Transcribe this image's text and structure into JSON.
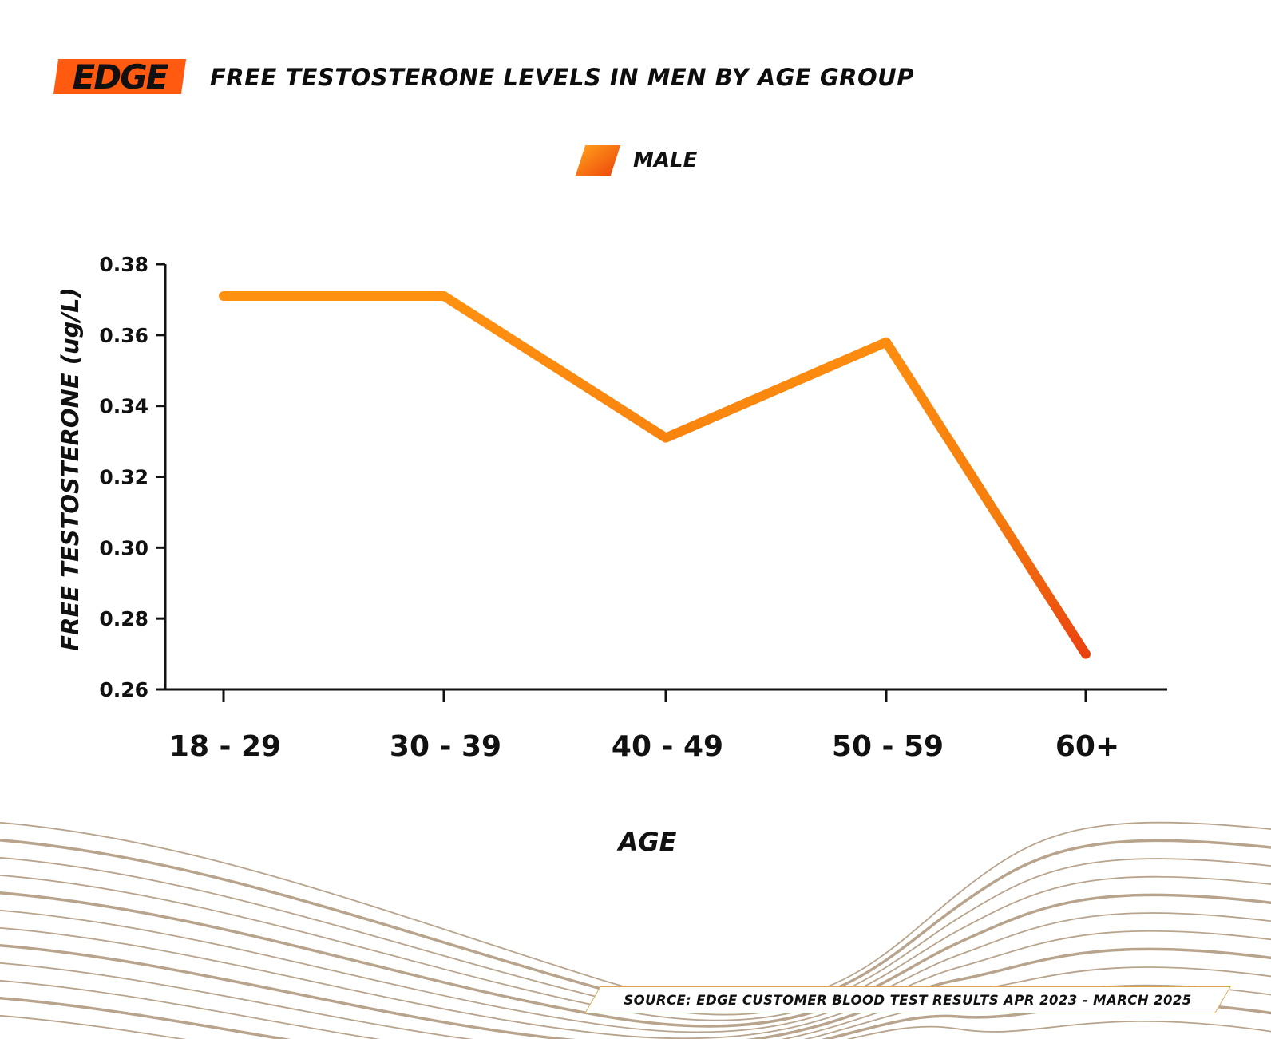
{
  "brand": {
    "logo_text": "EDGE",
    "accent": "#ff5a0f"
  },
  "header": {
    "title": "FREE TESTOSTERONE LEVELS IN MEN BY AGE GROUP"
  },
  "legend": {
    "label": "MALE"
  },
  "colors": {
    "line_start": "#ff9110",
    "line_end": "#ea4310",
    "axis": "#111111",
    "waves": "#b09a80"
  },
  "chart_data": {
    "type": "line",
    "title": "FREE TESTOSTERONE LEVELS IN MEN BY AGE GROUP",
    "xlabel": "AGE",
    "ylabel": "FREE TESTOSTERONE (ug/L)",
    "categories": [
      "18 - 29",
      "30 - 39",
      "40 - 49",
      "50 - 59",
      "60+"
    ],
    "series": [
      {
        "name": "MALE",
        "values": [
          0.371,
          0.371,
          0.331,
          0.358,
          0.27
        ]
      }
    ],
    "ylim": [
      0.26,
      0.38
    ],
    "yticks": [
      0.26,
      0.28,
      0.3,
      0.32,
      0.34,
      0.36,
      0.38
    ],
    "ytick_labels": [
      "0.26",
      "0.28",
      "0.30",
      "0.32",
      "0.34",
      "0.36",
      "0.38"
    ],
    "grid": false,
    "legend": "top-center"
  },
  "footer": {
    "source": "SOURCE: EDGE CUSTOMER BLOOD TEST RESULTS APR 2023 - MARCH 2025"
  }
}
